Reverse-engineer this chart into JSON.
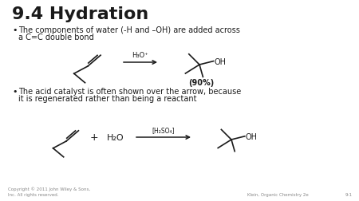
{
  "title": "9.4 Hydration",
  "background_color": "#ffffff",
  "bullet1_line1": "The components of water (-H and –OH) are added across",
  "bullet1_line2": "a C=C double bond",
  "bullet2_line1": "The acid catalyst is often shown over the arrow, because",
  "bullet2_line2": "it is regenerated rather than being a reactant",
  "catalyst1": "H₃O⁺",
  "yield_label": "(90%)",
  "plus_sign": "+",
  "reactant2": "H₂O",
  "catalyst2": "[H₂SO₄]",
  "footer_left": "Copyright © 2011 John Wiley & Sons,\nInc. All rights reserved.",
  "footer_right": "Klein, Organic Chemistry 2e",
  "slide_num": "9-1",
  "text_color": "#1a1a1a",
  "footer_color": "#888888"
}
